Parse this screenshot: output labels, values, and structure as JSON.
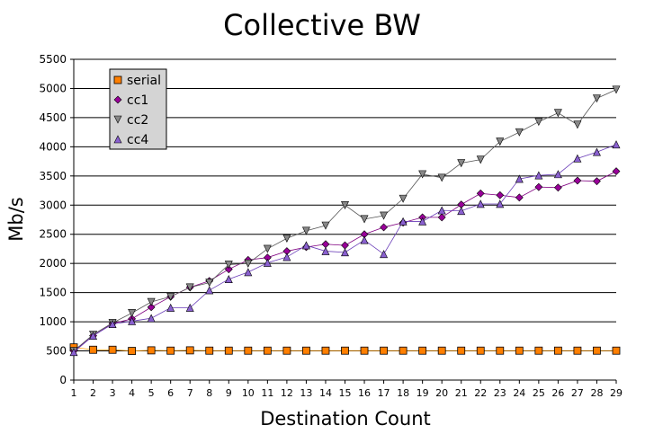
{
  "chart_data": {
    "type": "line",
    "title": "Collective BW",
    "xlabel": "Destination Count",
    "ylabel": "Mb/s",
    "ylim": [
      0,
      5500
    ],
    "yticks": [
      0,
      500,
      1000,
      1500,
      2000,
      2500,
      3000,
      3500,
      4000,
      4500,
      5000,
      5500
    ],
    "grid": "horizontal",
    "legend_position": "top-left",
    "categories": [
      1,
      2,
      3,
      4,
      5,
      6,
      7,
      8,
      9,
      10,
      11,
      12,
      13,
      14,
      15,
      16,
      17,
      18,
      19,
      20,
      21,
      22,
      23,
      24,
      25,
      26,
      27,
      28,
      29
    ],
    "series": [
      {
        "name": "serial",
        "marker": "square",
        "color": "#ff7f00",
        "line_color": "#ff9900",
        "values": [
          560,
          520,
          520,
          500,
          510,
          505,
          510,
          505,
          505,
          505,
          505,
          505,
          505,
          505,
          505,
          505,
          505,
          505,
          505,
          505,
          505,
          505,
          505,
          505,
          505,
          505,
          505,
          505,
          505
        ]
      },
      {
        "name": "cc1",
        "marker": "diamond",
        "color": "#990099",
        "line_color": "#800080",
        "values": [
          500,
          760,
          970,
          1050,
          1250,
          1430,
          1590,
          1700,
          1900,
          2060,
          2100,
          2210,
          2280,
          2330,
          2310,
          2500,
          2620,
          2700,
          2790,
          2790,
          3010,
          3200,
          3170,
          3130,
          3310,
          3300,
          3420,
          3410,
          3580
        ]
      },
      {
        "name": "cc2",
        "marker": "triangle-down",
        "color": "#888888",
        "line_color": "#555555",
        "values": [
          500,
          780,
          980,
          1150,
          1340,
          1430,
          1590,
          1670,
          1980,
          2000,
          2250,
          2430,
          2560,
          2650,
          3000,
          2760,
          2820,
          3110,
          3530,
          3470,
          3720,
          3780,
          4090,
          4250,
          4430,
          4580,
          4380,
          4830,
          4980
        ]
      },
      {
        "name": "cc4",
        "marker": "triangle-up",
        "color": "#8a60d0",
        "line_color": "#6a3db8",
        "values": [
          480,
          760,
          960,
          1010,
          1060,
          1240,
          1240,
          1540,
          1730,
          1850,
          2010,
          2110,
          2310,
          2210,
          2190,
          2400,
          2160,
          2720,
          2720,
          2910,
          2900,
          3020,
          3020,
          3450,
          3510,
          3530,
          3800,
          3910,
          4040
        ]
      }
    ]
  }
}
